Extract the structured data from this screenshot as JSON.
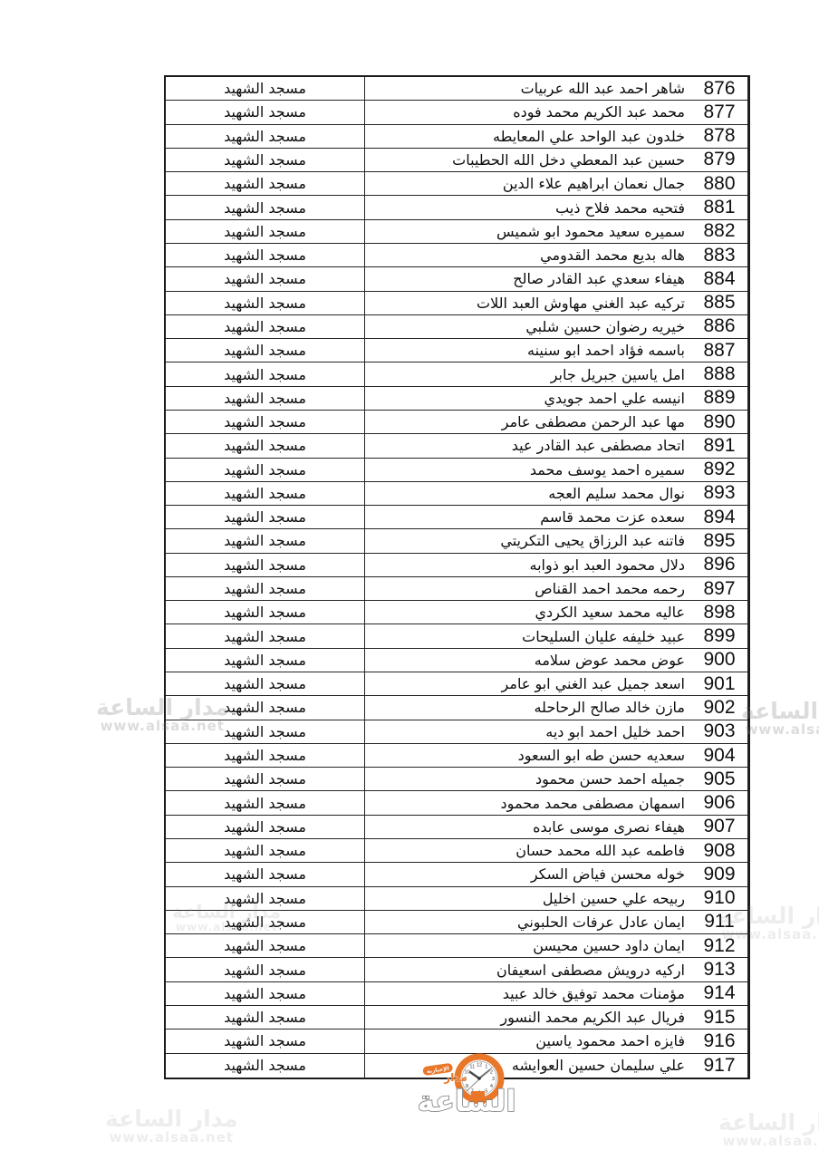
{
  "table": {
    "location_label": "مسجد الشهيد",
    "rows": [
      {
        "no": "876",
        "name": "شاهر احمد عبد الله عربيات"
      },
      {
        "no": "877",
        "name": "محمد عبد الكريم محمد فوده"
      },
      {
        "no": "878",
        "name": "خلدون عبد الواحد علي المعايطه"
      },
      {
        "no": "879",
        "name": "حسين عبد المعطي دخل الله الحطيبات"
      },
      {
        "no": "880",
        "name": "جمال نعمان ابراهيم علاء الدين"
      },
      {
        "no": "881",
        "name": "فتحيه محمد فلاح ذيب"
      },
      {
        "no": "882",
        "name": "سميره سعيد محمود ابو شميس"
      },
      {
        "no": "883",
        "name": "هاله بديع محمد القدومي"
      },
      {
        "no": "884",
        "name": "هيفاء سعدي عبد القادر صالح"
      },
      {
        "no": "885",
        "name": "تركيه عبد الغني مهاوش العبد اللات"
      },
      {
        "no": "886",
        "name": "خيريه رضوان حسين شلبي"
      },
      {
        "no": "887",
        "name": "باسمه فؤاد احمد ابو سنينه"
      },
      {
        "no": "888",
        "name": "امل ياسين جبريل جابر"
      },
      {
        "no": "889",
        "name": "انيسه علي احمد جويدي"
      },
      {
        "no": "890",
        "name": "مها عبد الرحمن مصطفى عامر"
      },
      {
        "no": "891",
        "name": "اتحاد مصطفى عبد القادر عيد"
      },
      {
        "no": "892",
        "name": "سميره احمد يوسف محمد"
      },
      {
        "no": "893",
        "name": "نوال محمد سليم العجه"
      },
      {
        "no": "894",
        "name": "سعده عزت محمد قاسم"
      },
      {
        "no": "895",
        "name": "فاتنه عبد الرزاق يحيى التكريتي"
      },
      {
        "no": "896",
        "name": "دلال محمود العبد ابو ذوابه"
      },
      {
        "no": "897",
        "name": "رحمه محمد احمد القناص"
      },
      {
        "no": "898",
        "name": "عاليه محمد سعيد الكردي"
      },
      {
        "no": "899",
        "name": "عبيد خليفه عليان السليحات"
      },
      {
        "no": "900",
        "name": "عوض محمد عوض سلامه"
      },
      {
        "no": "901",
        "name": "اسعد جميل عبد الغني ابو عامر"
      },
      {
        "no": "902",
        "name": "مازن خالد صالح الرحاحله"
      },
      {
        "no": "903",
        "name": "احمد خليل احمد ابو ديه"
      },
      {
        "no": "904",
        "name": "سعديه حسن طه ابو السعود"
      },
      {
        "no": "905",
        "name": "جميله احمد حسن محمود"
      },
      {
        "no": "906",
        "name": "اسمهان مصطفى محمد محمود"
      },
      {
        "no": "907",
        "name": "هيفاء نصرى موسى عابده"
      },
      {
        "no": "908",
        "name": "فاطمه عبد الله محمد حسان"
      },
      {
        "no": "909",
        "name": "خوله محسن فياض السكر"
      },
      {
        "no": "910",
        "name": "ربيحه علي حسين اخليل"
      },
      {
        "no": "911",
        "name": "ايمان عادل عرفات الحلبوني"
      },
      {
        "no": "912",
        "name": "ايمان داود حسين محيسن"
      },
      {
        "no": "913",
        "name": "اركيه درويش مصطفى اسعيفان"
      },
      {
        "no": "914",
        "name": "مؤمنات محمد توفيق خالد عبيد"
      },
      {
        "no": "915",
        "name": "فريال عبد الكريم محمد النسور"
      },
      {
        "no": "916",
        "name": "فايزه احمد محمود ياسين"
      },
      {
        "no": "917",
        "name": "علي سليمان حسين العوايشه"
      }
    ]
  },
  "watermark": {
    "brand": "مدار الساعة",
    "url": "www.alsaa.net"
  },
  "logo": {
    "word_top": "مدار",
    "word_main": "الساعة",
    "badge": "الإخبارية",
    "accent_color": "#e8772a",
    "outline_color": "#7a7a7a",
    "clock_numbers": [
      "12",
      "1",
      "2",
      "3",
      "4",
      "5",
      "6",
      "7",
      "8",
      "9",
      "10",
      "11"
    ]
  }
}
